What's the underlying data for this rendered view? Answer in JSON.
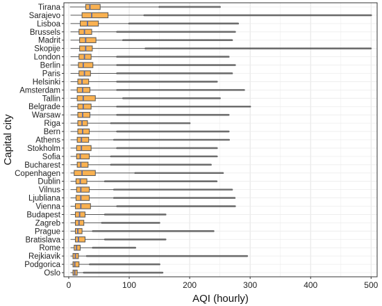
{
  "chart_data": {
    "type": "boxplot",
    "orientation": "horizontal",
    "xlabel": "AQI (hourly)",
    "ylabel": "Capital city",
    "xlim": [
      -8,
      510
    ],
    "xticks": [
      0,
      100,
      200,
      300,
      400,
      500
    ],
    "grid": true,
    "box_color": "#F9B151",
    "line_color": "#555555",
    "categories": [
      "Tirana",
      "Sarajevo",
      "Lisboa",
      "Brussels",
      "Madrit",
      "Skopije",
      "London",
      "Berlin",
      "Paris",
      "Helsinki",
      "Amsterdam",
      "Tallin",
      "Belgrade",
      "Warsaw",
      "Riga",
      "Bern",
      "Athens",
      "Stokholm",
      "Sofia",
      "Bucharest",
      "Copenhagen",
      "Dublin",
      "Vilnus",
      "Ljubliana",
      "Vienna",
      "Budapest",
      "Zagreb",
      "Prague",
      "Bratislava",
      "Rome",
      "Rejkiavik",
      "Podgorica",
      "Oslo"
    ],
    "boxes": [
      {
        "city": "Tirana",
        "whisker_low": 2,
        "q1": 28,
        "median": 35,
        "q3": 52,
        "whisker_high": 150,
        "outliers_from": 150,
        "outliers_to": 250
      },
      {
        "city": "Sarajevo",
        "whisker_low": 3,
        "q1": 22,
        "median": 38,
        "q3": 65,
        "whisker_high": 125,
        "outliers_from": 125,
        "outliers_to": 500
      },
      {
        "city": "Lisboa",
        "whisker_low": 3,
        "q1": 19,
        "median": 31,
        "q3": 49,
        "whisker_high": 100,
        "outliers_from": 100,
        "outliers_to": 280
      },
      {
        "city": "Brussels",
        "whisker_low": 3,
        "q1": 17,
        "median": 26,
        "q3": 38,
        "whisker_high": 80,
        "outliers_from": 80,
        "outliers_to": 275
      },
      {
        "city": "Madrit",
        "whisker_low": 3,
        "q1": 18,
        "median": 28,
        "q3": 45,
        "whisker_high": 90,
        "outliers_from": 90,
        "outliers_to": 270
      },
      {
        "city": "Skopije",
        "whisker_low": 3,
        "q1": 18,
        "median": 28,
        "q3": 39,
        "whisker_high": 127,
        "outliers_from": 127,
        "outliers_to": 500
      },
      {
        "city": "London",
        "whisker_low": 3,
        "q1": 17,
        "median": 26,
        "q3": 37,
        "whisker_high": 80,
        "outliers_from": 80,
        "outliers_to": 265
      },
      {
        "city": "Berlin",
        "whisker_low": 3,
        "q1": 16,
        "median": 24,
        "q3": 40,
        "whisker_high": 80,
        "outliers_from": 80,
        "outliers_to": 275
      },
      {
        "city": "Paris",
        "whisker_low": 3,
        "q1": 17,
        "median": 26,
        "q3": 36,
        "whisker_high": 80,
        "outliers_from": 80,
        "outliers_to": 270
      },
      {
        "city": "Helsinki",
        "whisker_low": 3,
        "q1": 15,
        "median": 22,
        "q3": 33,
        "whisker_high": 80,
        "outliers_from": 80,
        "outliers_to": 245
      },
      {
        "city": "Amsterdam",
        "whisker_low": 3,
        "q1": 14,
        "median": 23,
        "q3": 35,
        "whisker_high": 80,
        "outliers_from": 80,
        "outliers_to": 290
      },
      {
        "city": "Tallin",
        "whisker_low": 3,
        "q1": 14,
        "median": 24,
        "q3": 44,
        "whisker_high": 90,
        "outliers_from": 90,
        "outliers_to": 250
      },
      {
        "city": "Belgrade",
        "whisker_low": 3,
        "q1": 15,
        "median": 24,
        "q3": 37,
        "whisker_high": 80,
        "outliers_from": 80,
        "outliers_to": 300
      },
      {
        "city": "Warsaw",
        "whisker_low": 3,
        "q1": 15,
        "median": 23,
        "q3": 35,
        "whisker_high": 80,
        "outliers_from": 80,
        "outliers_to": 265
      },
      {
        "city": "Riga",
        "whisker_low": 3,
        "q1": 15,
        "median": 22,
        "q3": 31,
        "whisker_high": 70,
        "outliers_from": 70,
        "outliers_to": 200
      },
      {
        "city": "Bern",
        "whisker_low": 3,
        "q1": 15,
        "median": 23,
        "q3": 34,
        "whisker_high": 80,
        "outliers_from": 80,
        "outliers_to": 265
      },
      {
        "city": "Athens",
        "whisker_low": 3,
        "q1": 14,
        "median": 21,
        "q3": 33,
        "whisker_high": 75,
        "outliers_from": 75,
        "outliers_to": 265
      },
      {
        "city": "Stokholm",
        "whisker_low": 3,
        "q1": 13,
        "median": 21,
        "q3": 37,
        "whisker_high": 80,
        "outliers_from": 80,
        "outliers_to": 245
      },
      {
        "city": "Sofia",
        "whisker_low": 3,
        "q1": 13,
        "median": 19,
        "q3": 34,
        "whisker_high": 70,
        "outliers_from": 70,
        "outliers_to": 245
      },
      {
        "city": "Bucharest",
        "whisker_low": 3,
        "q1": 14,
        "median": 20,
        "q3": 32,
        "whisker_high": 70,
        "outliers_from": 70,
        "outliers_to": 235
      },
      {
        "city": "Copenhagen",
        "whisker_low": 3,
        "q1": 9,
        "median": 22,
        "q3": 44,
        "whisker_high": 110,
        "outliers_from": 110,
        "outliers_to": 255
      },
      {
        "city": "Dublin",
        "whisker_low": 3,
        "q1": 12,
        "median": 19,
        "q3": 30,
        "whisker_high": 60,
        "outliers_from": 60,
        "outliers_to": 245
      },
      {
        "city": "Vilnus",
        "whisker_low": 3,
        "q1": 13,
        "median": 20,
        "q3": 34,
        "whisker_high": 75,
        "outliers_from": 75,
        "outliers_to": 270
      },
      {
        "city": "Ljubliana",
        "whisker_low": 3,
        "q1": 12,
        "median": 20,
        "q3": 34,
        "whisker_high": 75,
        "outliers_from": 75,
        "outliers_to": 275
      },
      {
        "city": "Vienna",
        "whisker_low": 3,
        "q1": 11,
        "median": 20,
        "q3": 36,
        "whisker_high": 80,
        "outliers_from": 80,
        "outliers_to": 275
      },
      {
        "city": "Budapest",
        "whisker_low": 3,
        "q1": 11,
        "median": 18,
        "q3": 27,
        "whisker_high": 60,
        "outliers_from": 60,
        "outliers_to": 160
      },
      {
        "city": "Zagreb",
        "whisker_low": 3,
        "q1": 11,
        "median": 17,
        "q3": 25,
        "whisker_high": 55,
        "outliers_from": 55,
        "outliers_to": 150
      },
      {
        "city": "Prague",
        "whisker_low": 3,
        "q1": 11,
        "median": 15,
        "q3": 22,
        "whisker_high": 40,
        "outliers_from": 40,
        "outliers_to": 240
      },
      {
        "city": "Bratislava",
        "whisker_low": 3,
        "q1": 11,
        "median": 16,
        "q3": 27,
        "whisker_high": 60,
        "outliers_from": 60,
        "outliers_to": 160
      },
      {
        "city": "Rome",
        "whisker_low": 3,
        "q1": 9,
        "median": 13,
        "q3": 19,
        "whisker_high": 40,
        "outliers_from": 40,
        "outliers_to": 110
      },
      {
        "city": "Rejkiavik",
        "whisker_low": 3,
        "q1": 7,
        "median": 11,
        "q3": 16,
        "whisker_high": 30,
        "outliers_from": 30,
        "outliers_to": 295
      },
      {
        "city": "Podgorica",
        "whisker_low": 3,
        "q1": 7,
        "median": 10,
        "q3": 17,
        "whisker_high": 35,
        "outliers_from": 35,
        "outliers_to": 150
      },
      {
        "city": "Oslo",
        "whisker_low": 3,
        "q1": 7,
        "median": 10,
        "q3": 14,
        "whisker_high": 25,
        "outliers_from": 25,
        "outliers_to": 155
      }
    ]
  }
}
